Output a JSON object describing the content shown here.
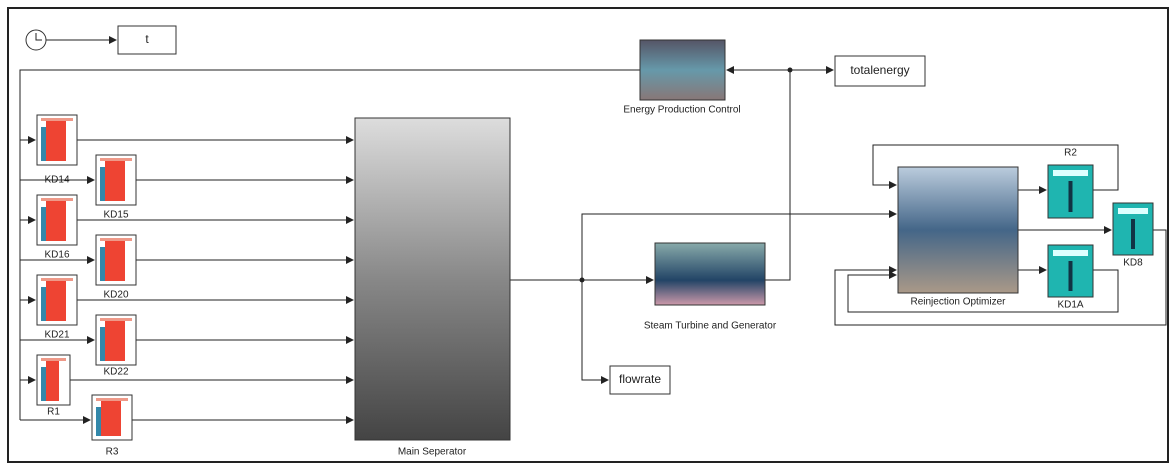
{
  "nodes": [
    {
      "label": "t"
    },
    {
      "label": "totalenergy"
    },
    {
      "label": "flowrate"
    },
    {
      "label": "Energy Production Control"
    },
    {
      "label": "Main Seperator"
    },
    {
      "label": "Steam Turbine and Generator"
    },
    {
      "label": "Reinjection Optimizer"
    },
    {
      "label": "KD14"
    },
    {
      "label": "KD15"
    },
    {
      "label": "KD16"
    },
    {
      "label": "KD20"
    },
    {
      "label": "KD21"
    },
    {
      "label": "KD22"
    },
    {
      "label": "R1"
    },
    {
      "label": "R3"
    },
    {
      "label": "R2"
    },
    {
      "label": "KD1A"
    },
    {
      "label": "KD8"
    }
  ]
}
